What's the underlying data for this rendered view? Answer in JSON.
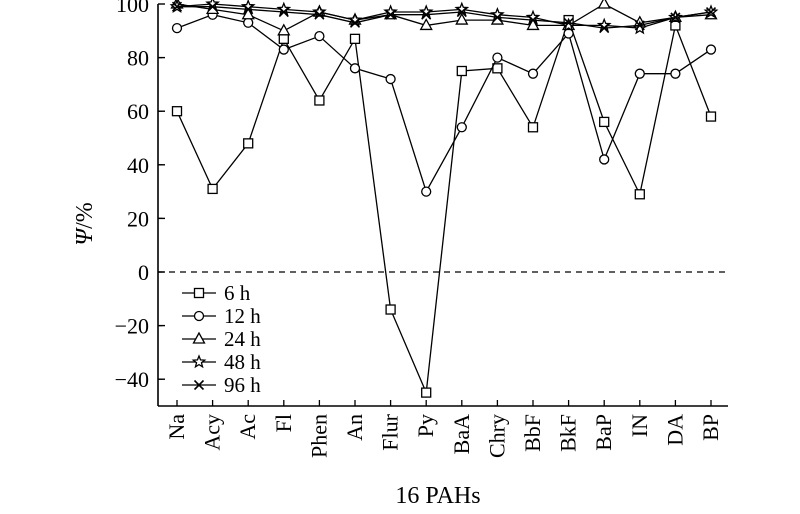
{
  "chart_data": {
    "type": "line",
    "xlabel": "16 PAHs",
    "ylabel_symbol": "Ψ",
    "ylabel_unit": "/%",
    "ylim": [
      -50,
      100
    ],
    "yticks": [
      -40,
      -20,
      0,
      20,
      40,
      60,
      80,
      100
    ],
    "ytick_labels": [
      "−40",
      "−20",
      "0",
      "20",
      "40",
      "60",
      "80",
      "100"
    ],
    "categories": [
      "Na",
      "Acy",
      "Ac",
      "Fl",
      "Phen",
      "An",
      "Flur",
      "Py",
      "BaA",
      "Chry",
      "BbF",
      "BkF",
      "BaP",
      "IN",
      "DA",
      "BP"
    ],
    "reference_line": {
      "y": 0,
      "style": "dashed"
    },
    "grid": false,
    "legend_position": "bottom-left",
    "series": [
      {
        "name": "6 h",
        "marker": "square",
        "values": [
          60,
          31,
          48,
          87,
          64,
          87,
          -14,
          -45,
          75,
          76,
          54,
          94,
          56,
          29,
          92,
          58
        ]
      },
      {
        "name": "12 h",
        "marker": "circle",
        "values": [
          91,
          96,
          93,
          83,
          88,
          76,
          72,
          30,
          54,
          80,
          74,
          89,
          42,
          74,
          74,
          83
        ]
      },
      {
        "name": "24 h",
        "marker": "triangle",
        "values": [
          100,
          98,
          96,
          90,
          97,
          94,
          96,
          92,
          94,
          94,
          92,
          92,
          100,
          93,
          95,
          96
        ]
      },
      {
        "name": "48 h",
        "marker": "star",
        "values": [
          99,
          100,
          99,
          98,
          97,
          94,
          97,
          97,
          98,
          96,
          95,
          92,
          92,
          91,
          95,
          97
        ]
      },
      {
        "name": "96 h",
        "marker": "x",
        "values": [
          99,
          99,
          98,
          97,
          96,
          93,
          96,
          96,
          97,
          95,
          94,
          93,
          91,
          92,
          95,
          97
        ]
      }
    ]
  }
}
